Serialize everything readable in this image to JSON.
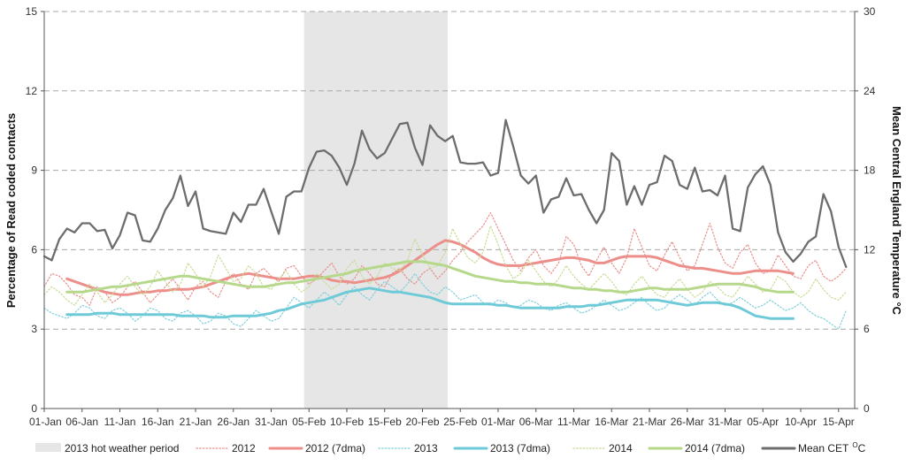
{
  "chart_data": {
    "type": "line",
    "title": "",
    "xlabel": "",
    "ylabel_left": "Percentage of Read coded contacts",
    "ylabel_right": "Mean Central England Temperature °C",
    "ylim_left": [
      0,
      15
    ],
    "ylim_right": [
      0,
      30
    ],
    "yticks_left": [
      "0",
      "3",
      "6",
      "9",
      "12",
      "15"
    ],
    "yticks_right": [
      "0",
      "6",
      "12",
      "18",
      "24",
      "30"
    ],
    "x_start": "01-Jan",
    "x_end": "17-Apr",
    "x_ticks": [
      "01-Jan",
      "06-Jan",
      "11-Jan",
      "16-Jan",
      "21-Jan",
      "26-Jan",
      "31-Jan",
      "05-Feb",
      "10-Feb",
      "15-Feb",
      "20-Feb",
      "25-Feb",
      "01-Mar",
      "06-Mar",
      "11-Mar",
      "16-Mar",
      "21-Mar",
      "26-Mar",
      "31-Mar",
      "05-Apr",
      "10-Apr",
      "15-Apr"
    ],
    "grid": "horizontal dashed",
    "legend_position": "bottom",
    "shaded_period": {
      "name": "2013 hot weather period",
      "start": "04-Feb",
      "end": "23-Feb",
      "color": "#e6e6e6"
    },
    "series": [
      {
        "name": "2012",
        "axis": "left",
        "style": "dotted",
        "color": "#e8908c",
        "values": [
          4.6,
          5.1,
          5.0,
          4.7,
          4.3,
          4.2,
          3.9,
          4.6,
          4.4,
          4.0,
          4.2,
          4.6,
          4.8,
          4.4,
          4.0,
          4.3,
          4.6,
          4.9,
          4.5,
          4.1,
          4.6,
          4.8,
          4.4,
          4.2,
          4.8,
          5.1,
          4.7,
          4.5,
          5.1,
          5.3,
          5.0,
          4.8,
          5.3,
          5.4,
          5.0,
          4.7,
          4.9,
          5.2,
          5.5,
          5.0,
          4.7,
          4.9,
          5.4,
          5.1,
          4.7,
          4.6,
          5.1,
          5.3,
          4.9,
          4.7,
          5.1,
          5.3,
          4.9,
          5.2,
          5.6,
          5.9,
          6.3,
          6.6,
          6.9,
          7.4,
          6.8,
          6.2,
          5.6,
          5.2,
          5.7,
          6.0,
          5.4,
          5.1,
          5.5,
          6.5,
          6.2,
          5.4,
          5.0,
          5.6,
          6.1,
          5.5,
          5.1,
          5.7,
          6.8,
          6.1,
          5.4,
          5.2,
          5.8,
          6.3,
          5.7,
          5.2,
          5.4,
          6.2,
          7.0,
          6.1,
          5.5,
          5.3,
          5.9,
          6.2,
          5.5,
          5.1,
          5.2,
          5.8,
          5.4,
          5.0,
          4.9,
          5.4,
          5.6,
          5.0,
          4.8,
          5.0,
          5.3
        ]
      },
      {
        "name": "2012 (7dma)",
        "axis": "left",
        "style": "solid",
        "color": "#ec8f8a",
        "start_index": 3,
        "values": [
          4.9,
          4.8,
          4.7,
          4.6,
          4.5,
          4.4,
          4.35,
          4.3,
          4.3,
          4.35,
          4.4,
          4.4,
          4.45,
          4.45,
          4.5,
          4.5,
          4.5,
          4.55,
          4.6,
          4.7,
          4.8,
          4.9,
          5.0,
          5.05,
          5.1,
          5.05,
          5.0,
          4.95,
          4.9,
          4.9,
          4.9,
          4.95,
          5.0,
          5.0,
          4.95,
          4.85,
          4.8,
          4.8,
          4.75,
          4.8,
          4.85,
          4.9,
          4.95,
          5.05,
          5.2,
          5.4,
          5.6,
          5.8,
          6.0,
          6.2,
          6.35,
          6.3,
          6.2,
          6.05,
          5.9,
          5.7,
          5.55,
          5.45,
          5.4,
          5.4,
          5.4,
          5.45,
          5.5,
          5.55,
          5.6,
          5.65,
          5.7,
          5.7,
          5.65,
          5.6,
          5.5,
          5.5,
          5.6,
          5.7,
          5.75,
          5.75,
          5.75,
          5.75,
          5.7,
          5.6,
          5.5,
          5.4,
          5.35,
          5.3,
          5.3,
          5.25,
          5.2,
          5.15,
          5.1,
          5.1,
          5.15,
          5.2,
          5.2,
          5.2,
          5.2,
          5.15,
          5.1
        ]
      },
      {
        "name": "2013",
        "axis": "left",
        "style": "dotted",
        "color": "#7fcfdc",
        "values": [
          3.8,
          3.6,
          3.5,
          3.4,
          3.6,
          3.9,
          3.8,
          3.5,
          3.4,
          3.7,
          3.8,
          3.6,
          3.3,
          3.5,
          3.8,
          3.7,
          3.4,
          3.3,
          3.6,
          3.7,
          3.5,
          3.2,
          3.3,
          3.6,
          3.5,
          3.2,
          3.1,
          3.4,
          3.7,
          3.5,
          3.3,
          3.4,
          3.8,
          4.2,
          4.0,
          3.8,
          4.1,
          4.4,
          4.2,
          3.9,
          4.3,
          4.6,
          4.3,
          4.1,
          4.5,
          4.8,
          4.6,
          4.4,
          4.7,
          5.1,
          4.7,
          4.4,
          4.3,
          4.6,
          4.4,
          4.1,
          4.2,
          4.3,
          4.0,
          3.9,
          4.1,
          4.0,
          3.8,
          3.9,
          4.1,
          4.0,
          3.8,
          3.7,
          3.9,
          4.0,
          3.8,
          3.6,
          3.7,
          3.9,
          4.1,
          3.9,
          3.7,
          3.8,
          4.0,
          4.2,
          3.9,
          3.7,
          3.8,
          4.1,
          4.3,
          4.1,
          3.9,
          4.2,
          4.4,
          4.1,
          3.9,
          4.0,
          4.2,
          4.0,
          3.8,
          3.9,
          4.1,
          3.9,
          3.7,
          3.8,
          4.0,
          3.7,
          3.5,
          3.4,
          3.2,
          3.0,
          3.7
        ]
      },
      {
        "name": "2013 (7dma)",
        "axis": "left",
        "style": "solid",
        "color": "#6fcad8",
        "start_index": 3,
        "values": [
          3.55,
          3.55,
          3.55,
          3.55,
          3.6,
          3.6,
          3.6,
          3.55,
          3.55,
          3.55,
          3.55,
          3.55,
          3.55,
          3.55,
          3.55,
          3.5,
          3.5,
          3.5,
          3.5,
          3.45,
          3.45,
          3.45,
          3.5,
          3.5,
          3.5,
          3.5,
          3.55,
          3.6,
          3.7,
          3.75,
          3.85,
          3.95,
          4.0,
          4.05,
          4.1,
          4.2,
          4.3,
          4.4,
          4.45,
          4.5,
          4.55,
          4.5,
          4.45,
          4.4,
          4.4,
          4.35,
          4.3,
          4.25,
          4.2,
          4.1,
          4.0,
          3.95,
          3.95,
          3.95,
          3.95,
          3.95,
          3.95,
          3.9,
          3.9,
          3.85,
          3.8,
          3.8,
          3.8,
          3.8,
          3.8,
          3.8,
          3.85,
          3.85,
          3.85,
          3.9,
          3.9,
          3.95,
          4.0,
          4.05,
          4.1,
          4.1,
          4.1,
          4.1,
          4.1,
          4.05,
          4.0,
          3.95,
          3.9,
          3.95,
          4.0,
          4.0,
          4.0,
          3.95,
          3.9,
          3.8,
          3.65,
          3.5,
          3.45,
          3.4,
          3.4,
          3.4,
          3.4
        ]
      },
      {
        "name": "2014",
        "axis": "left",
        "style": "dotted",
        "color": "#c7dc95",
        "values": [
          4.3,
          4.6,
          4.4,
          4.1,
          3.9,
          4.3,
          4.7,
          4.4,
          4.0,
          4.3,
          4.7,
          5.0,
          4.6,
          4.3,
          4.6,
          5.2,
          4.8,
          4.4,
          4.7,
          5.5,
          5.1,
          4.6,
          5.0,
          5.8,
          5.3,
          4.8,
          4.9,
          5.4,
          5.1,
          4.6,
          4.5,
          4.9,
          5.2,
          4.7,
          4.4,
          4.6,
          5.1,
          4.8,
          4.5,
          4.7,
          5.3,
          5.6,
          5.0,
          4.7,
          5.0,
          5.5,
          5.3,
          5.2,
          5.6,
          6.4,
          5.8,
          5.3,
          5.4,
          5.9,
          6.8,
          6.2,
          5.7,
          5.5,
          5.9,
          6.9,
          6.2,
          5.4,
          4.9,
          5.1,
          5.6,
          5.2,
          4.8,
          4.6,
          4.9,
          5.4,
          5.0,
          4.7,
          4.5,
          4.8,
          5.1,
          4.8,
          4.4,
          4.3,
          4.7,
          5.0,
          4.6,
          4.3,
          4.2,
          4.6,
          4.9,
          4.5,
          4.2,
          4.4,
          4.8,
          4.6,
          4.3,
          4.2,
          4.6,
          5.0,
          4.7,
          4.4,
          4.5,
          5.0,
          4.8,
          4.4,
          4.2,
          4.4,
          4.9,
          4.5,
          4.2,
          4.1,
          4.4
        ]
      },
      {
        "name": "2014 (7dma)",
        "axis": "left",
        "style": "solid",
        "color": "#b5d88a",
        "start_index": 3,
        "values": [
          4.4,
          4.4,
          4.4,
          4.45,
          4.5,
          4.55,
          4.6,
          4.6,
          4.65,
          4.7,
          4.75,
          4.8,
          4.85,
          4.9,
          4.95,
          5.0,
          5.0,
          4.95,
          4.9,
          4.85,
          4.8,
          4.75,
          4.7,
          4.65,
          4.6,
          4.6,
          4.6,
          4.65,
          4.7,
          4.75,
          4.75,
          4.8,
          4.85,
          4.9,
          4.95,
          5.0,
          5.05,
          5.1,
          5.2,
          5.25,
          5.3,
          5.35,
          5.4,
          5.45,
          5.5,
          5.55,
          5.55,
          5.55,
          5.5,
          5.45,
          5.4,
          5.3,
          5.2,
          5.1,
          5.0,
          4.95,
          4.9,
          4.85,
          4.8,
          4.8,
          4.75,
          4.75,
          4.7,
          4.7,
          4.7,
          4.65,
          4.6,
          4.55,
          4.55,
          4.5,
          4.5,
          4.45,
          4.45,
          4.4,
          4.4,
          4.45,
          4.5,
          4.55,
          4.55,
          4.5,
          4.5,
          4.5,
          4.5,
          4.55,
          4.6,
          4.65,
          4.7,
          4.7,
          4.7,
          4.7,
          4.65,
          4.6,
          4.5,
          4.45,
          4.4,
          4.4,
          4.4
        ]
      },
      {
        "name": "Mean CET °C",
        "axis": "right",
        "style": "solid",
        "color": "#6d6d6d",
        "values": [
          11.5,
          11.2,
          12.8,
          13.6,
          13.3,
          14.0,
          14.0,
          13.4,
          13.5,
          12.1,
          13.1,
          14.8,
          14.6,
          12.7,
          12.6,
          13.6,
          15.0,
          15.9,
          17.6,
          15.3,
          16.4,
          13.6,
          13.4,
          13.3,
          13.2,
          14.8,
          14.1,
          15.4,
          15.4,
          16.6,
          14.9,
          13.2,
          16.0,
          16.4,
          16.4,
          18.2,
          19.4,
          19.5,
          19.1,
          18.2,
          16.9,
          18.5,
          21.0,
          19.6,
          18.9,
          19.3,
          20.4,
          21.5,
          21.6,
          19.7,
          18.4,
          21.4,
          20.6,
          20.2,
          20.6,
          18.6,
          18.5,
          18.5,
          18.6,
          17.6,
          17.8,
          21.8,
          19.8,
          17.6,
          17.0,
          17.6,
          14.8,
          15.8,
          16.0,
          17.4,
          16.1,
          16.2,
          15.0,
          14.0,
          15.0,
          19.3,
          18.7,
          15.4,
          16.8,
          15.4,
          16.9,
          17.1,
          19.1,
          18.7,
          16.9,
          16.6,
          18.2,
          16.4,
          16.5,
          16.1,
          17.6,
          13.6,
          13.4,
          16.7,
          17.7,
          18.3,
          16.9,
          13.3,
          11.8,
          11.1,
          11.7,
          12.6,
          13.0,
          16.2,
          14.9,
          12.2,
          10.7
        ]
      }
    ]
  },
  "legend": {
    "items": [
      {
        "label": "2013 hot weather period",
        "kind": "box",
        "color": "#e6e6e6"
      },
      {
        "label": "2012",
        "kind": "dotted",
        "color": "#e8908c"
      },
      {
        "label": "2012 (7dma)",
        "kind": "solid",
        "color": "#ec8f8a"
      },
      {
        "label": "2013",
        "kind": "dotted",
        "color": "#7fcfdc"
      },
      {
        "label": "2013 (7dma)",
        "kind": "solid",
        "color": "#6fcad8"
      },
      {
        "label": "2014",
        "kind": "dotted",
        "color": "#c7dc95"
      },
      {
        "label": "2014 (7dma)",
        "kind": "solid",
        "color": "#b5d88a"
      },
      {
        "label": "Mean CET",
        "kind": "solid",
        "color": "#6d6d6d",
        "superscript": "O",
        "unit": "C"
      }
    ]
  }
}
